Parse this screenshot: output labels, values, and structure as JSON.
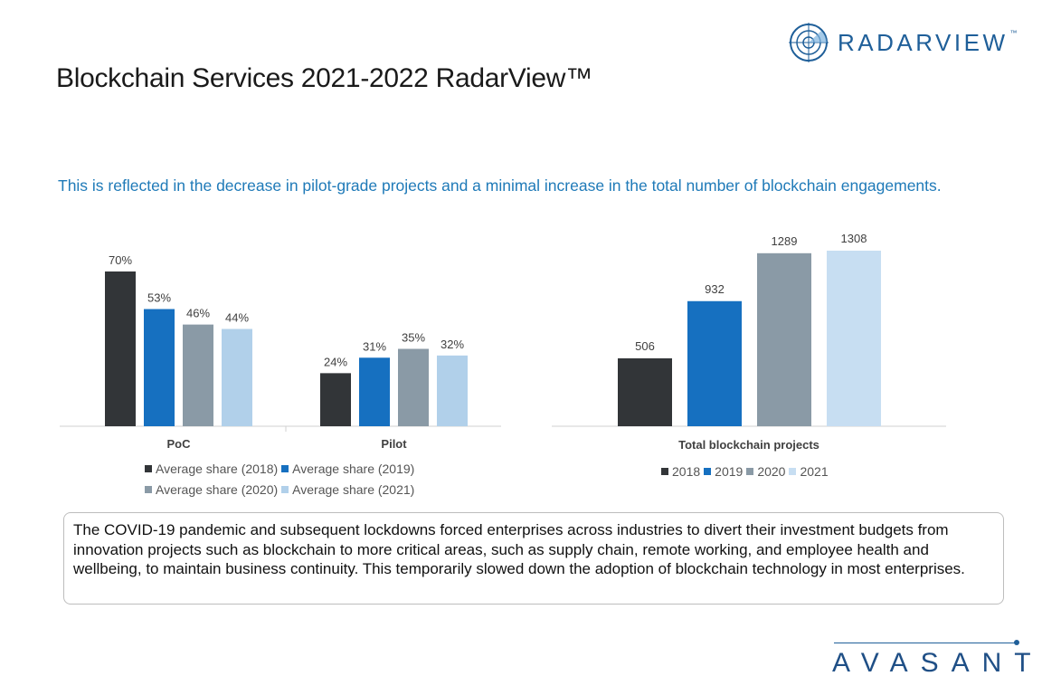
{
  "header": {
    "title": "Blockchain Services 2021-2022 RadarView™",
    "logo_text": "RADARVIEW",
    "logo_tm": "™"
  },
  "subtitle": "This is reflected in the decrease in pilot-grade projects and a minimal increase in the total number of blockchain engagements.",
  "colors": {
    "s2018": "#323538",
    "s2019": "#1670c0",
    "s2020": "#8a9aa6",
    "s2021": "#b1d0ea",
    "s2021_light": "#c7def2",
    "accent": "#1f7ab8"
  },
  "chart_data": [
    {
      "type": "bar",
      "categories": [
        "PoC",
        "Pilot"
      ],
      "series": [
        {
          "name": "Average share (2018)",
          "values": [
            70,
            24
          ]
        },
        {
          "name": "Average share (2019)",
          "values": [
            53,
            31
          ]
        },
        {
          "name": "Average share (2020)",
          "values": [
            46,
            35
          ]
        },
        {
          "name": "Average share (2021)",
          "values": [
            44,
            32
          ]
        }
      ],
      "data_labels": [
        [
          "70%",
          "24%"
        ],
        [
          "53%",
          "31%"
        ],
        [
          "46%",
          "35%"
        ],
        [
          "44%",
          "32%"
        ]
      ],
      "ylim": [
        0,
        80
      ],
      "legend": [
        "Average share (2018)",
        "Average share (2019)",
        "Average share (2020)",
        "Average share (2021)"
      ],
      "legend_position": "bottom",
      "grid": false
    },
    {
      "type": "bar",
      "categories": [
        "Total blockchain projects"
      ],
      "series": [
        {
          "name": "2018",
          "values": [
            506
          ]
        },
        {
          "name": "2019",
          "values": [
            932
          ]
        },
        {
          "name": "2020",
          "values": [
            1289
          ]
        },
        {
          "name": "2021",
          "values": [
            1308
          ]
        }
      ],
      "data_labels": [
        "506",
        "932",
        "1289",
        "1308"
      ],
      "ylim": [
        0,
        1400
      ],
      "legend": [
        "2018",
        "2019",
        "2020",
        "2021"
      ],
      "legend_position": "bottom",
      "grid": false
    }
  ],
  "textbox": "The COVID-19 pandemic and subsequent lockdowns forced enterprises across industries to divert their investment budgets from innovation projects such as blockchain to more critical areas, such as supply chain, remote working, and employee health and wellbeing, to maintain business continuity. This temporarily slowed down the adoption of blockchain technology in most enterprises.",
  "footer": {
    "brand": "AVASANT"
  }
}
